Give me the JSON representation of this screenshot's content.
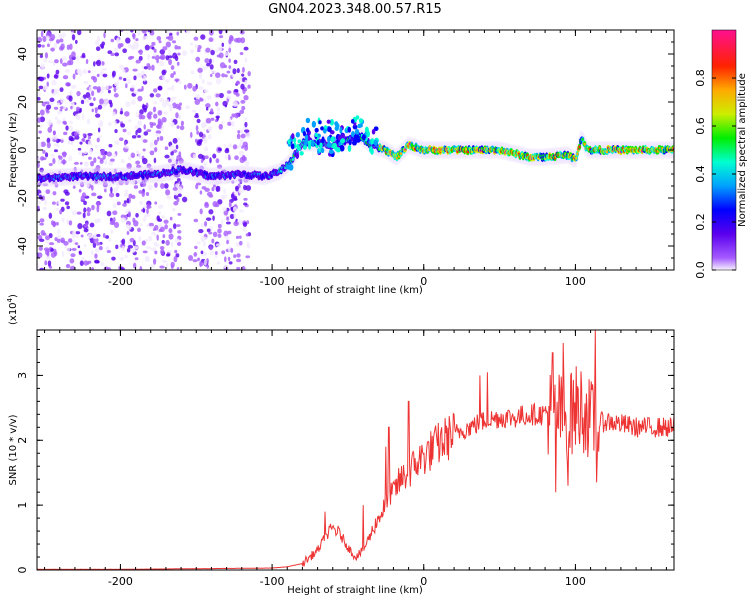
{
  "title": "GN04.2023.348.00.57.R15",
  "colors": {
    "snr_line": "#ee3333",
    "colormap": [
      "#f2eaff",
      "#a65cff",
      "#5a00ee",
      "#0000ff",
      "#00a0ff",
      "#00ffd0",
      "#00ee00",
      "#ccee00",
      "#ffaa00",
      "#ff2200",
      "#ff1090"
    ]
  },
  "chart_data": [
    {
      "type": "heatmap",
      "xlabel": "Height of straight line (km)",
      "ylabel": "Frequency (Hz)",
      "xlim": [
        -255,
        165
      ],
      "ylim": [
        -50,
        50
      ],
      "xticks": [
        -200,
        -100,
        0,
        100
      ],
      "yticks": [
        -40,
        -20,
        0,
        20,
        40
      ],
      "ridge": {
        "x": [
          -255,
          -230,
          -200,
          -175,
          -160,
          -140,
          -120,
          -105,
          -95,
          -88,
          -80,
          -70,
          -60,
          -50,
          -42,
          -35,
          -25,
          -18,
          -10,
          0,
          20,
          50,
          70,
          80,
          95,
          100,
          104,
          108,
          115,
          130,
          165
        ],
        "y": [
          -12,
          -11,
          -11,
          -10,
          -8,
          -11,
          -10,
          -11,
          -9,
          -5,
          3,
          3,
          2,
          4,
          6,
          2,
          0,
          -3,
          2,
          0,
          0,
          0,
          -3,
          -3,
          -2,
          -4,
          5,
          0,
          0,
          0,
          0
        ]
      },
      "colorbar": {
        "label": "Normalized spectral amplitude",
        "range": [
          0,
          1
        ],
        "ticks": [
          "0.0",
          "0.2",
          "0.4",
          "0.6",
          "0.8"
        ]
      }
    },
    {
      "type": "line",
      "xlabel": "Height of straight line (km)",
      "ylabel": "SNR (10 * v/v)",
      "ylabel_scale": "(x10",
      "ylabel_exp": "4",
      "ylabel_close": ")",
      "xlim": [
        -255,
        165
      ],
      "ylim": [
        0,
        3.7
      ],
      "xticks": [
        -200,
        -100,
        0,
        100
      ],
      "yticks": [
        0,
        1,
        2,
        3
      ],
      "series": [
        {
          "x": [
            -255,
            -200,
            -150,
            -100,
            -90,
            -80,
            -70,
            -65,
            -60,
            -55,
            -50,
            -45,
            -40,
            -35,
            -30,
            -25,
            -20,
            -15,
            -10,
            -5,
            0,
            10,
            20,
            30,
            40,
            50,
            60,
            70,
            80,
            85,
            90,
            95,
            100,
            105,
            110,
            115,
            120,
            130,
            140,
            150,
            165
          ],
          "y": [
            0.01,
            0.01,
            0.02,
            0.03,
            0.05,
            0.1,
            0.3,
            0.5,
            0.65,
            0.55,
            0.35,
            0.2,
            0.3,
            0.55,
            0.8,
            1.0,
            1.2,
            1.4,
            1.5,
            1.65,
            1.75,
            1.95,
            2.1,
            2.2,
            2.3,
            2.35,
            2.35,
            2.4,
            2.4,
            2.45,
            2.4,
            2.3,
            2.5,
            2.5,
            2.3,
            2.25,
            2.3,
            2.25,
            2.2,
            2.2,
            2.2
          ],
          "spikes": [
            {
              "x": -65,
              "y": 0.9
            },
            {
              "x": -40,
              "y": 1.0
            },
            {
              "x": -25,
              "y": 1.9
            },
            {
              "x": -23,
              "y": 2.2
            },
            {
              "x": -10,
              "y": 2.6
            },
            {
              "x": 37,
              "y": 3.0
            },
            {
              "x": 42,
              "y": 3.05
            },
            {
              "x": 85,
              "y": 3.35
            },
            {
              "x": 87,
              "y": 1.2
            },
            {
              "x": 92,
              "y": 3.5
            },
            {
              "x": 95,
              "y": 1.3
            },
            {
              "x": 97,
              "y": 3.0
            },
            {
              "x": 113,
              "y": 3.7
            },
            {
              "x": 114,
              "y": 1.35
            }
          ]
        }
      ]
    }
  ]
}
